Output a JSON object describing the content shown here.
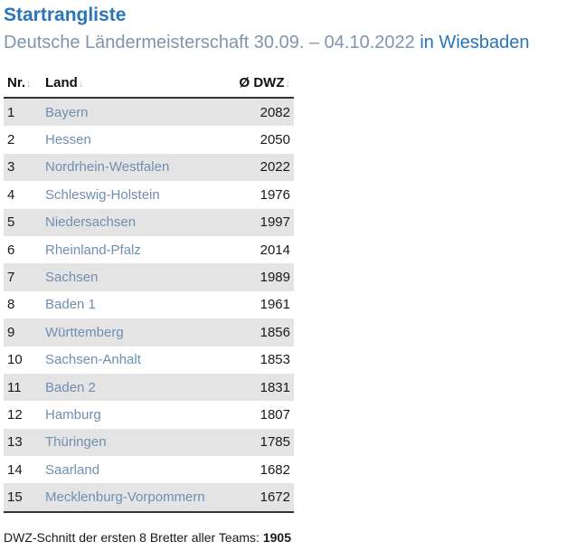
{
  "heading": {
    "title": "Startrangliste",
    "subtitle_main": "Deutsche Ländermeisterschaft 30.09. – 04.10.2022",
    "subtitle_location": "in Wiesbaden"
  },
  "table": {
    "headers": {
      "nr": "Nr.",
      "land": "Land",
      "dwz": "Ø DWZ",
      "sort_glyph": "↓"
    },
    "rows": [
      {
        "nr": "1",
        "land": "Bayern",
        "dwz": "2082"
      },
      {
        "nr": "2",
        "land": "Hessen",
        "dwz": "2050"
      },
      {
        "nr": "3",
        "land": "Nordrhein-Westfalen",
        "dwz": "2022"
      },
      {
        "nr": "4",
        "land": "Schleswig-Holstein",
        "dwz": "1976"
      },
      {
        "nr": "5",
        "land": "Niedersachsen",
        "dwz": "1997"
      },
      {
        "nr": "6",
        "land": "Rheinland-Pfalz",
        "dwz": "2014"
      },
      {
        "nr": "7",
        "land": "Sachsen",
        "dwz": "1989"
      },
      {
        "nr": "8",
        "land": "Baden 1",
        "dwz": "1961"
      },
      {
        "nr": "9",
        "land": "Württemberg",
        "dwz": "1856"
      },
      {
        "nr": "10",
        "land": "Sachsen-Anhalt",
        "dwz": "1853"
      },
      {
        "nr": "11",
        "land": "Baden 2",
        "dwz": "1831"
      },
      {
        "nr": "12",
        "land": "Hamburg",
        "dwz": "1807"
      },
      {
        "nr": "13",
        "land": "Thüringen",
        "dwz": "1785"
      },
      {
        "nr": "14",
        "land": "Saarland",
        "dwz": "1682"
      },
      {
        "nr": "15",
        "land": "Mecklenburg-Vorpommern",
        "dwz": "1672"
      }
    ]
  },
  "footer": {
    "label": "DWZ-Schnitt der ersten 8 Bretter aller Teams:",
    "value": "1905"
  },
  "colors": {
    "accent_blue": "#2a74b8",
    "muted_blue": "#7f95ad",
    "link_blue": "#6f8fb2",
    "stripe_gray": "#e4e4e4"
  }
}
